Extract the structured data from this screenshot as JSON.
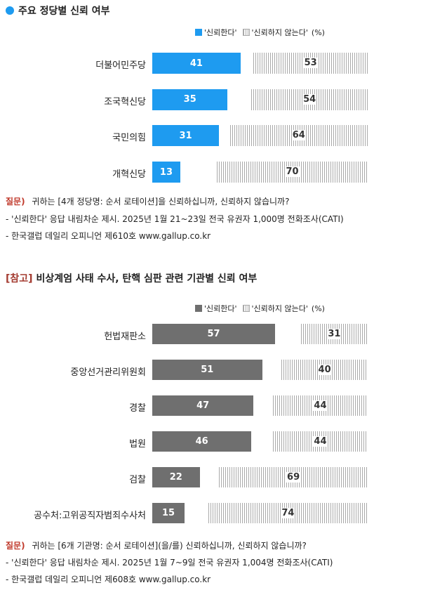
{
  "colors": {
    "accent_blue": "#1e9bf0",
    "dark_gray": "#6f6f6f",
    "hatch_gray": "#a9a9a9",
    "question_red": "#c0392b",
    "ref_tag": "#a33a2f"
  },
  "section1": {
    "title": "주요 정당별 신뢰 여부",
    "legend": {
      "trust": "'신뢰한다'",
      "distrust": "'신뢰하지 않는다'",
      "unit": "(%)"
    },
    "notes": {
      "q_label": "질문)",
      "q_text": "귀하는 [4개 정당명: 순서 로테이션]을 신뢰하십니까, 신뢰하지 않습니까?",
      "line1": "- '신뢰한다' 응답 내림차순 제시. 2025년 1월 21~23일 전국 유권자 1,000명 전화조사(CATI)",
      "line2": "- 한국갤럽 데일리 오피니언 제610호 www.gallup.co.kr"
    }
  },
  "section2": {
    "title_tag": "[참고]",
    "title": "비상계엄 사태 수사, 탄핵 심판 관련 기관별 신뢰 여부",
    "legend": {
      "trust": "'신뢰한다'",
      "distrust": "'신뢰하지 않는다'",
      "unit": "(%)"
    },
    "notes": {
      "q_label": "질문)",
      "q_text": "귀하는 [6개 기관명: 순서 로테이션](을/를) 신뢰하십니까, 신뢰하지 않습니까?",
      "line1": "- '신뢰한다' 응답 내림차순 제시. 2025년 1월 7~9일 전국 유권자 1,004명 전화조사(CATI)",
      "line2": "- 한국갤럽 데일리 오피니언 제608호 www.gallup.co.kr"
    }
  },
  "chart_data": [
    {
      "type": "bar",
      "orientation": "horizontal",
      "stacked": true,
      "title": "주요 정당별 신뢰 여부",
      "categories": [
        "더불어민주당",
        "조국혁신당",
        "국민의힘",
        "개혁신당"
      ],
      "series": [
        {
          "name": "'신뢰한다'",
          "values": [
            41,
            35,
            31,
            13
          ],
          "color": "#1e9bf0"
        },
        {
          "name": "'신뢰하지 않는다'",
          "values": [
            53,
            54,
            64,
            70
          ],
          "color": "#a9a9a9"
        }
      ],
      "unit": "(%)",
      "xlim": [
        0,
        100
      ],
      "legend": "top-right",
      "grid": false
    },
    {
      "type": "bar",
      "orientation": "horizontal",
      "stacked": true,
      "title": "비상계엄 사태 수사, 탄핵 심판 관련 기관별 신뢰 여부",
      "categories": [
        "헌법재판소",
        "중앙선거관리위원회",
        "경찰",
        "법원",
        "검찰",
        "공수처:고위공직자범죄수사처"
      ],
      "series": [
        {
          "name": "'신뢰한다'",
          "values": [
            57,
            51,
            47,
            46,
            22,
            15
          ],
          "color": "#6f6f6f"
        },
        {
          "name": "'신뢰하지 않는다'",
          "values": [
            31,
            40,
            44,
            44,
            69,
            74
          ],
          "color": "#a9a9a9"
        }
      ],
      "unit": "(%)",
      "xlim": [
        0,
        100
      ],
      "legend": "top-right",
      "grid": false
    }
  ]
}
